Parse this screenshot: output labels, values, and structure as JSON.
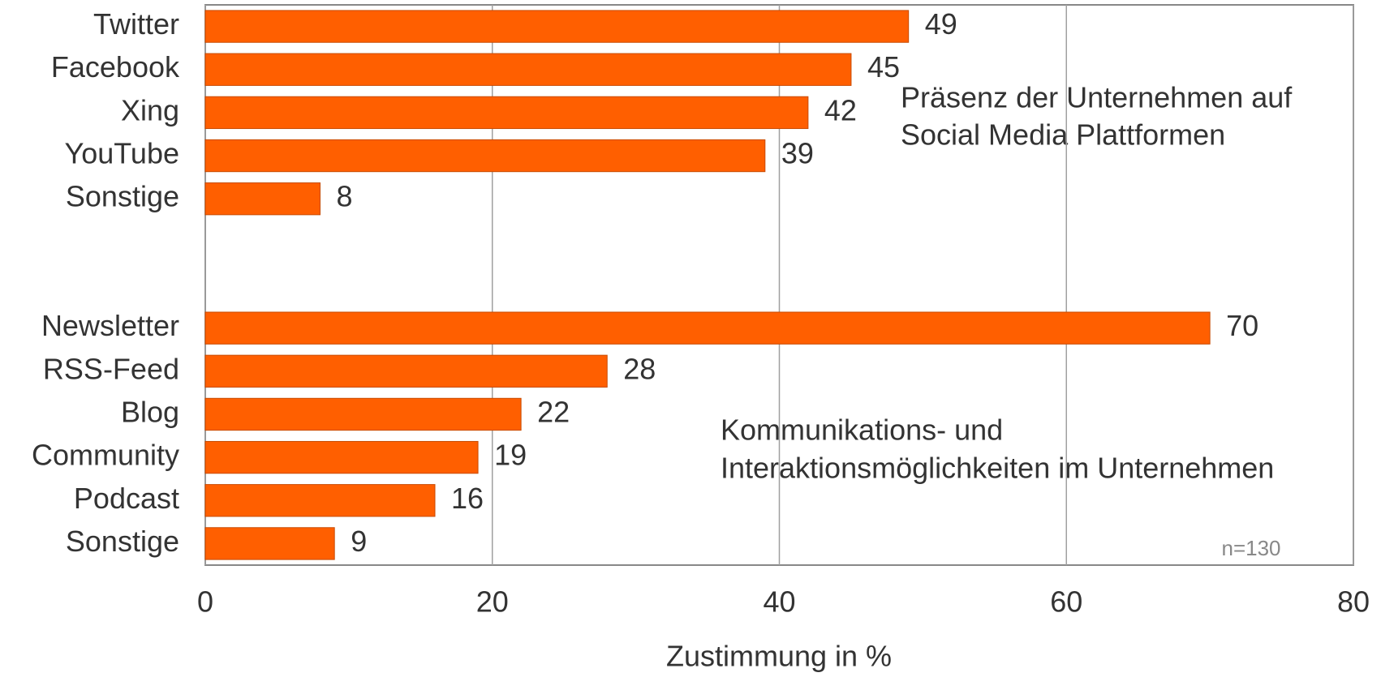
{
  "chart_data": {
    "type": "hbar",
    "categories": [
      "Twitter",
      "Facebook",
      "Xing",
      "YouTube",
      "Sonstige",
      null,
      null,
      "Newsletter",
      "RSS-Feed",
      "Blog",
      "Community",
      "Podcast",
      "Sonstige"
    ],
    "values": [
      49,
      45,
      42,
      39,
      8,
      null,
      null,
      70,
      28,
      22,
      19,
      16,
      9
    ],
    "color": "#ff5f00",
    "xlim": [
      0,
      80
    ],
    "xticks": [
      0,
      20,
      40,
      60,
      80
    ],
    "grid": true,
    "xlabel": "Zustimmung in %",
    "annotations": [
      {
        "lines": [
          "Präsenz der Unternehmen auf",
          "Social Media Plattformen"
        ]
      },
      {
        "lines": [
          "Kommunikations- und",
          "Interaktionsmöglichkeiten im Unternehmen"
        ]
      }
    ],
    "note": "n=130"
  }
}
